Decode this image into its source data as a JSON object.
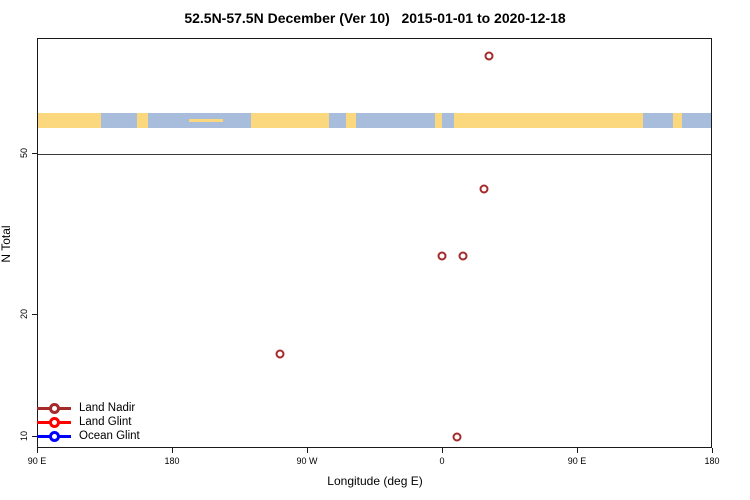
{
  "title": "52.5N-57.5N December (Ver 10)   2015-01-01 to 2020-12-18",
  "x_axis": {
    "label": "Longitude (deg E)",
    "tick_labels": [
      "90 E",
      "180",
      "90 W",
      "0",
      "90 E",
      "180"
    ]
  },
  "y_axis": {
    "label": "N Total",
    "tick_labels": [
      "50",
      "20",
      "10"
    ],
    "tick_values": [
      50,
      20,
      10
    ],
    "scale": "log"
  },
  "legend": {
    "items": [
      {
        "label": "Land Nadir",
        "color": "#A52A2A"
      },
      {
        "label": "Land Glint",
        "color": "#FF0000"
      },
      {
        "label": "Ocean Glint",
        "color": "#0000FF"
      }
    ]
  },
  "chart_data": {
    "type": "scatter",
    "title": "52.5N-57.5N December (Ver 10)   2015-01-01 to 2020-12-18",
    "xlabel": "Longitude (deg E)",
    "ylabel": "N Total",
    "x_axis": {
      "range_deg_east": [
        90,
        540
      ],
      "wraps_dateline": true,
      "tick_positions_deg": [
        90,
        180,
        270,
        360,
        450,
        540
      ],
      "tick_labels": [
        "90 E",
        "180",
        "90 W",
        "0",
        "90 E",
        "180"
      ]
    },
    "y_axis": {
      "scale": "log",
      "ticks": [
        10,
        20,
        50
      ],
      "approx_range": [
        9.3,
        96
      ]
    },
    "reference_line_y": 50,
    "series": [
      {
        "name": "Land Nadir",
        "color": "#A52A2A",
        "marker": "open-circle",
        "points": [
          {
            "lon_deg_e": 30.5,
            "n_total": 87
          },
          {
            "lon_deg_e": 27,
            "n_total": 41
          },
          {
            "lon_deg_e": -1,
            "n_total": 28
          },
          {
            "lon_deg_e": 13,
            "n_total": 28
          },
          {
            "lon_deg_e": -109,
            "n_total": 16
          },
          {
            "lon_deg_e": 9,
            "n_total": 10
          }
        ]
      },
      {
        "name": "Land Glint",
        "color": "#FF0000",
        "marker": "open-circle",
        "points": []
      },
      {
        "name": "Ocean Glint",
        "color": "#0000FF",
        "marker": "open-circle",
        "points": []
      }
    ],
    "map_band": {
      "description": "coastline strip for 52.5N-57.5N drawn across top of plot above N=50 line",
      "land_color": "#FBD77E",
      "ocean_color": "#A8BCDC",
      "ocean_segments_frac": [
        [
          0.093,
          0.147
        ],
        [
          0.163,
          0.316
        ],
        [
          0.432,
          0.458
        ],
        [
          0.472,
          0.59
        ],
        [
          0.601,
          0.618
        ],
        [
          0.899,
          0.944
        ],
        [
          0.957,
          1.0
        ]
      ],
      "thin_land_segments_frac": [
        [
          0.225,
          0.275
        ]
      ]
    }
  }
}
